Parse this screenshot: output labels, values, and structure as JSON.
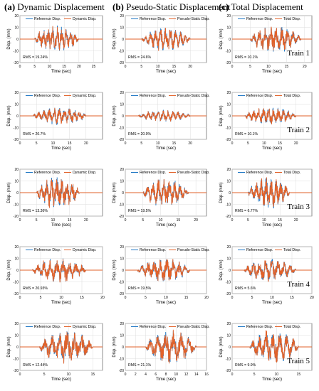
{
  "headers": [
    {
      "tag": "(a)",
      "text": "Dynamic Displacement"
    },
    {
      "tag": "(b)",
      "text": "Pseudo-Static Displacement"
    },
    {
      "tag": "(c)",
      "text": "Total Displacement"
    }
  ],
  "colors": {
    "reference": "#1f77c4",
    "other": "#e2622a"
  },
  "chart_data": [
    {
      "type": "line",
      "title": "",
      "xlabel": "Time (sec)",
      "ylabel": "Disp. (mm)",
      "xlim": [
        0,
        28
      ],
      "ylim": [
        -20,
        20
      ],
      "xticks": [
        0,
        5,
        10,
        15,
        20,
        25
      ],
      "yticks": [
        -20,
        -10,
        0,
        10,
        20
      ],
      "series": [
        {
          "name": "Reference Disp."
        },
        {
          "name": "Dynamic Disp."
        }
      ],
      "annotation": "RMS = 19.24%",
      "train": "",
      "amp": 9,
      "start": 5,
      "end": 20,
      "grid": true,
      "legend": "top"
    },
    {
      "type": "line",
      "title": "",
      "xlabel": "Time (sec)",
      "ylabel": "Disp. (mm)",
      "xlim": [
        0,
        25
      ],
      "ylim": [
        -20,
        20
      ],
      "xticks": [
        0,
        5,
        10,
        15,
        20
      ],
      "yticks": [
        -20,
        -10,
        0,
        10,
        20
      ],
      "series": [
        {
          "name": "Reference Disp."
        },
        {
          "name": "Pseudo-Static Disp."
        }
      ],
      "annotation": "RMS = 24.6%",
      "train": "",
      "amp": 8,
      "start": 5,
      "end": 20,
      "grid": true,
      "legend": "top"
    },
    {
      "type": "line",
      "title": "",
      "xlabel": "Time (sec)",
      "ylabel": "Disp. (mm)",
      "xlim": [
        0,
        22
      ],
      "ylim": [
        -20,
        20
      ],
      "xticks": [
        0,
        5,
        10,
        15,
        20
      ],
      "yticks": [
        -20,
        -10,
        0,
        10,
        20
      ],
      "series": [
        {
          "name": "Reference Disp."
        },
        {
          "name": "Total Disp."
        }
      ],
      "annotation": "RMS = 10.1%",
      "train": "Train 1",
      "amp": 9,
      "start": 5,
      "end": 19,
      "grid": true,
      "legend": "top"
    },
    {
      "type": "line",
      "title": "",
      "xlabel": "Time (sec)",
      "ylabel": "Disp. (mm)",
      "xlim": [
        0,
        25
      ],
      "ylim": [
        -20,
        20
      ],
      "xticks": [
        0,
        5,
        10,
        15,
        20
      ],
      "yticks": [
        -20,
        -10,
        0,
        10,
        20
      ],
      "series": [
        {
          "name": "Reference Disp."
        },
        {
          "name": "Dynamic Disp."
        }
      ],
      "annotation": "RMS = 20.7%",
      "train": "",
      "amp": 6,
      "start": 4,
      "end": 20,
      "grid": true,
      "legend": "top"
    },
    {
      "type": "line",
      "title": "",
      "xlabel": "Time (sec)",
      "ylabel": "Disp. (mm)",
      "xlim": [
        0,
        25
      ],
      "ylim": [
        -20,
        20
      ],
      "xticks": [
        0,
        5,
        10,
        15,
        20
      ],
      "yticks": [
        -20,
        -10,
        0,
        10,
        20
      ],
      "series": [
        {
          "name": "Reference Disp."
        },
        {
          "name": "Pseudo-Static Disp."
        }
      ],
      "annotation": "RMS = 20.9%",
      "train": "",
      "amp": 4,
      "start": 4,
      "end": 20,
      "grid": true,
      "legend": "top"
    },
    {
      "type": "line",
      "title": "",
      "xlabel": "Time (sec)",
      "ylabel": "Disp. (mm)",
      "xlim": [
        0,
        25
      ],
      "ylim": [
        -20,
        20
      ],
      "xticks": [
        0,
        5,
        10,
        15,
        20
      ],
      "yticks": [
        -20,
        -10,
        0,
        10,
        20
      ],
      "series": [
        {
          "name": "Reference Disp."
        },
        {
          "name": "Total Disp."
        }
      ],
      "annotation": "RMS = 10.1%",
      "train": "Train 2",
      "amp": 6,
      "start": 4,
      "end": 20,
      "grid": true,
      "legend": "top"
    },
    {
      "type": "line",
      "title": "",
      "xlabel": "Time (sec)",
      "ylabel": "Disp. (mm)",
      "xlim": [
        0,
        25
      ],
      "ylim": [
        -20,
        20
      ],
      "xticks": [
        0,
        5,
        10,
        15,
        20
      ],
      "yticks": [
        -20,
        -10,
        0,
        10,
        20
      ],
      "series": [
        {
          "name": "Reference Disp."
        },
        {
          "name": "Dynamic Disp."
        }
      ],
      "annotation": "RMS = 13.36%",
      "train": "",
      "amp": 11,
      "start": 5,
      "end": 18,
      "grid": true,
      "legend": "top"
    },
    {
      "type": "line",
      "title": "",
      "xlabel": "Time (sec)",
      "ylabel": "Disp. (mm)",
      "xlim": [
        0,
        23
      ],
      "ylim": [
        -20,
        20
      ],
      "xticks": [
        0,
        5,
        10,
        15,
        20
      ],
      "yticks": [
        -20,
        -10,
        0,
        10,
        20
      ],
      "series": [
        {
          "name": "Reference Disp."
        },
        {
          "name": "Pseudo-Static Disp."
        }
      ],
      "annotation": "RMS = 19.5%",
      "train": "",
      "amp": 10,
      "start": 5,
      "end": 18,
      "grid": true,
      "legend": "top"
    },
    {
      "type": "line",
      "title": "",
      "xlabel": "Time (sec)",
      "ylabel": "Disp. (mm)",
      "xlim": [
        0,
        25
      ],
      "ylim": [
        -20,
        20
      ],
      "xticks": [
        0,
        5,
        10,
        15,
        20
      ],
      "yticks": [
        -20,
        -10,
        0,
        10,
        20
      ],
      "series": [
        {
          "name": "Reference Disp."
        },
        {
          "name": "Total Disp."
        }
      ],
      "annotation": "RMS = 6.77%",
      "train": "Train 3",
      "amp": 11,
      "start": 5,
      "end": 18,
      "grid": true,
      "legend": "top"
    },
    {
      "type": "line",
      "title": "",
      "xlabel": "Time (sec)",
      "ylabel": "Disp. (mm)",
      "xlim": [
        0,
        20
      ],
      "ylim": [
        -20,
        20
      ],
      "xticks": [
        0,
        5,
        10,
        15,
        20
      ],
      "yticks": [
        -20,
        -10,
        0,
        10,
        20
      ],
      "series": [
        {
          "name": "Reference Disp."
        },
        {
          "name": "Dynamic Disp."
        }
      ],
      "annotation": "RMS = 20.93%",
      "train": "",
      "amp": 8,
      "start": 3,
      "end": 16,
      "grid": true,
      "legend": "top"
    },
    {
      "type": "line",
      "title": "",
      "xlabel": "Time (sec)",
      "ylabel": "Disp. (mm)",
      "xlim": [
        0,
        20
      ],
      "ylim": [
        -20,
        20
      ],
      "xticks": [
        0,
        5,
        10,
        15,
        20
      ],
      "yticks": [
        -20,
        -10,
        0,
        10,
        20
      ],
      "series": [
        {
          "name": "Reference Disp."
        },
        {
          "name": "Pseudo-Static Disp."
        }
      ],
      "annotation": "RMS = 19.5%",
      "train": "",
      "amp": 8,
      "start": 3,
      "end": 16,
      "grid": true,
      "legend": "top"
    },
    {
      "type": "line",
      "title": "",
      "xlabel": "Time (sec)",
      "ylabel": "Disp. (mm)",
      "xlim": [
        0,
        20
      ],
      "ylim": [
        -20,
        20
      ],
      "xticks": [
        0,
        5,
        10,
        15,
        20
      ],
      "yticks": [
        -20,
        -10,
        0,
        10,
        20
      ],
      "series": [
        {
          "name": "Reference Disp."
        },
        {
          "name": "Total Disp."
        }
      ],
      "annotation": "RMS = 5.6%",
      "train": "Train 4",
      "amp": 8,
      "start": 3,
      "end": 16,
      "grid": true,
      "legend": "top"
    },
    {
      "type": "line",
      "title": "",
      "xlabel": "Time (sec)",
      "ylabel": "Disp. (mm)",
      "xlim": [
        0,
        17
      ],
      "ylim": [
        -20,
        20
      ],
      "xticks": [
        0,
        5,
        10,
        15
      ],
      "yticks": [
        -20,
        -10,
        0,
        10,
        20
      ],
      "series": [
        {
          "name": "Reference Disp."
        },
        {
          "name": "Dynamic Disp."
        }
      ],
      "annotation": "RMS = 12.44%",
      "train": "",
      "amp": 11,
      "start": 4,
      "end": 15,
      "grid": true,
      "legend": "top"
    },
    {
      "type": "line",
      "title": "",
      "xlabel": "Time (sec)",
      "ylabel": "Disp. (mm)",
      "xlim": [
        0,
        16
      ],
      "ylim": [
        -20,
        20
      ],
      "xticks": [
        0,
        2,
        4,
        6,
        8,
        10,
        12,
        14,
        16
      ],
      "yticks": [
        -20,
        -10,
        0,
        10,
        20
      ],
      "series": [
        {
          "name": "Reference Disp."
        },
        {
          "name": "Pseudo-Static Disp."
        }
      ],
      "annotation": "RMS = 21.1%",
      "train": "",
      "amp": 11,
      "start": 4,
      "end": 14,
      "grid": true,
      "legend": "top"
    },
    {
      "type": "line",
      "title": "",
      "xlabel": "Time (sec)",
      "ylabel": "Disp. (mm)",
      "xlim": [
        0,
        18
      ],
      "ylim": [
        -20,
        20
      ],
      "xticks": [
        0,
        5,
        10,
        15
      ],
      "yticks": [
        -20,
        -10,
        0,
        10,
        20
      ],
      "series": [
        {
          "name": "Reference Disp."
        },
        {
          "name": "Total Disp."
        }
      ],
      "annotation": "RMS = 9.9%",
      "train": "Train 5",
      "amp": 11,
      "start": 4,
      "end": 15,
      "grid": true,
      "legend": "top"
    }
  ]
}
